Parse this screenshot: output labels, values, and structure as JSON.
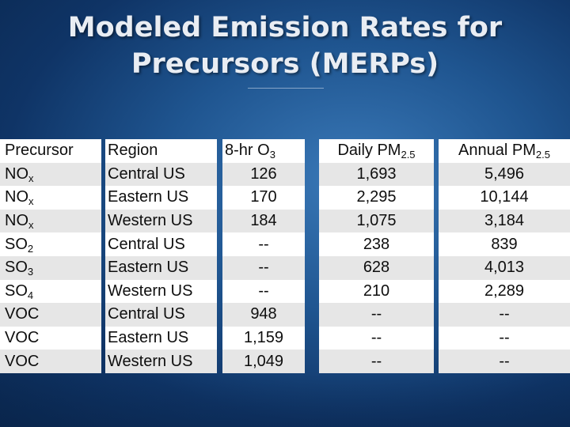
{
  "slide": {
    "title_line1": "Modeled Emission Rates for",
    "title_line2": "Precursors (MERPs)"
  },
  "table": {
    "headers": {
      "precursor": "Precursor",
      "region": "Region",
      "o3": {
        "base": "8-hr O",
        "sub": "3"
      },
      "daily": {
        "base": "Daily PM",
        "sub": "2.5"
      },
      "annual": {
        "base": "Annual PM",
        "sub": "2.5"
      }
    },
    "rows": [
      {
        "precursor": {
          "base": "NO",
          "sub": "x"
        },
        "region": "Central US",
        "o3": "126",
        "daily": "1,693",
        "annual": "5,496"
      },
      {
        "precursor": {
          "base": "NO",
          "sub": "x"
        },
        "region": "Eastern US",
        "o3": "170",
        "daily": "2,295",
        "annual": "10,144"
      },
      {
        "precursor": {
          "base": "NO",
          "sub": "x"
        },
        "region": "Western US",
        "o3": "184",
        "daily": "1,075",
        "annual": "3,184"
      },
      {
        "precursor": {
          "base": "SO",
          "sub": "2"
        },
        "region": "Central US",
        "o3": "--",
        "daily": "238",
        "annual": "839"
      },
      {
        "precursor": {
          "base": "SO",
          "sub": "3"
        },
        "region": "Eastern US",
        "o3": "--",
        "daily": "628",
        "annual": "4,013"
      },
      {
        "precursor": {
          "base": "SO",
          "sub": "4"
        },
        "region": "Western US",
        "o3": "--",
        "daily": "210",
        "annual": "2,289"
      },
      {
        "precursor": {
          "base": "VOC",
          "sub": ""
        },
        "region": "Central US",
        "o3": "948",
        "daily": "--",
        "annual": "--"
      },
      {
        "precursor": {
          "base": "VOC",
          "sub": ""
        },
        "region": "Eastern US",
        "o3": "1,159",
        "daily": "--",
        "annual": "--"
      },
      {
        "precursor": {
          "base": "VOC",
          "sub": ""
        },
        "region": "Western US",
        "o3": "1,049",
        "daily": "--",
        "annual": "--"
      }
    ]
  }
}
